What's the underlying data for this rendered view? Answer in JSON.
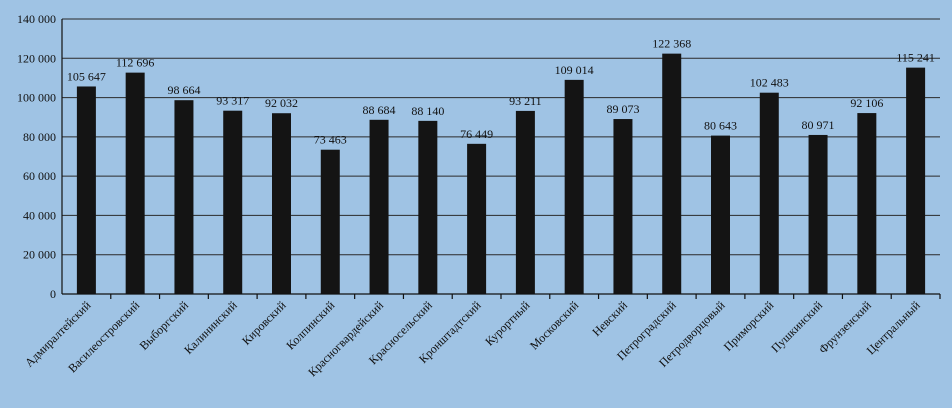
{
  "chart_data": {
    "type": "bar",
    "title": "",
    "xlabel": "",
    "ylabel": "",
    "ylim": [
      0,
      140000
    ],
    "yticks": [
      "0",
      "20 000",
      "40 000",
      "60 000",
      "80 000",
      "100 000",
      "120 000",
      "140 000"
    ],
    "grid": "horizontal",
    "categories": [
      "Адмиралтейский",
      "Василеостровский",
      "Выборгский",
      "Калининский",
      "Кировский",
      "Колпинский",
      "Красногвардейский",
      "Красносельский",
      "Кронштадтский",
      "Курортный",
      "Московский",
      "Невский",
      "Петроградский",
      "Петродворцовый",
      "Приморский",
      "Пушкинский",
      "Фрунзенский",
      "Центральный"
    ],
    "values": [
      105647,
      112696,
      98664,
      93317,
      92032,
      73463,
      88684,
      88140,
      76449,
      93211,
      109014,
      89073,
      122368,
      80643,
      102483,
      80971,
      92106,
      115241
    ],
    "data_labels": [
      "105 647",
      "112 696",
      "98 664",
      "93 317",
      "92 032",
      "73 463",
      "88 684",
      "88 140",
      "76 449",
      "93 211",
      "109 014",
      "89 073",
      "122 368",
      "80 643",
      "102 483",
      "80 971",
      "92 106",
      "115 241"
    ],
    "colors": {
      "bar": "#141414",
      "background": "#9fc3e4"
    }
  }
}
